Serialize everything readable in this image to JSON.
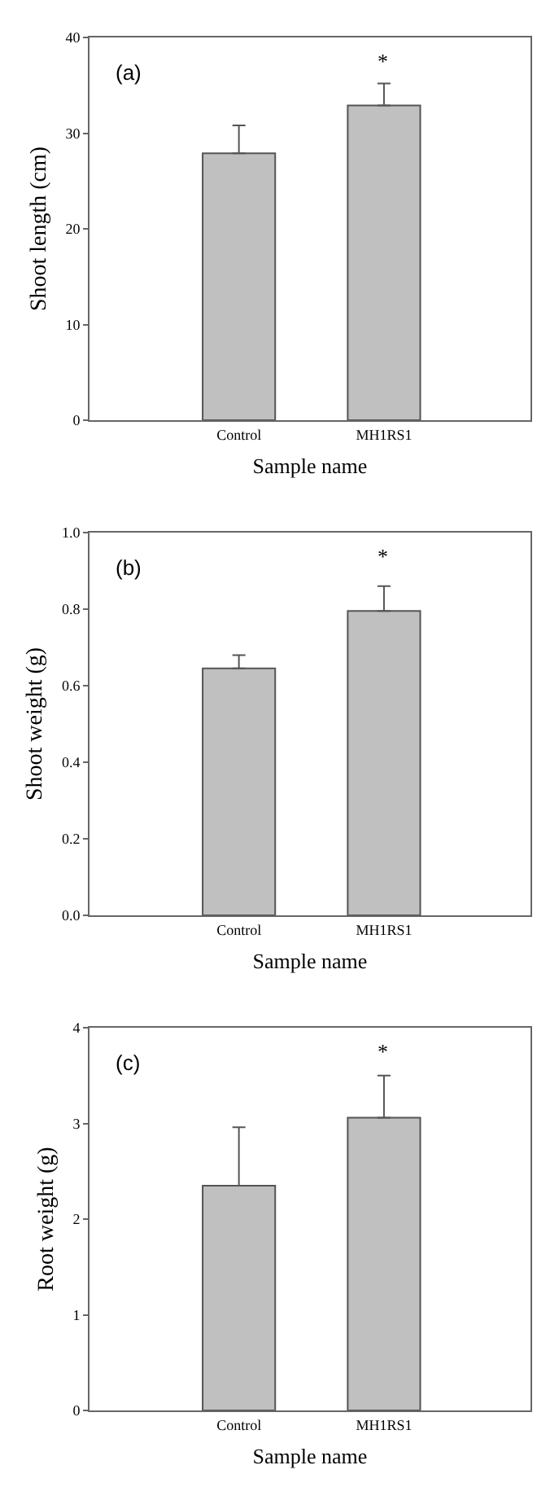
{
  "chart_data": [
    {
      "type": "bar",
      "categories": [
        "Control",
        "MH1RS1"
      ],
      "values": [
        27.9,
        32.9
      ],
      "errors": [
        [
          27.9,
          30.8
        ],
        [
          32.9,
          35.2
        ]
      ],
      "color": "#c0c0c0",
      "xlabel": "Sample name",
      "ylabel": "Shoot length (cm)",
      "ylim": [
        0,
        40
      ],
      "yticks": [
        0,
        10,
        20,
        30,
        40
      ],
      "annotations": [
        "(a)",
        "*"
      ]
    },
    {
      "type": "bar",
      "categories": [
        "Control",
        "MH1RS1"
      ],
      "values": [
        0.645,
        0.795
      ],
      "errors": [
        [
          0.645,
          0.68
        ],
        [
          0.795,
          0.86
        ]
      ],
      "color": "#c0c0c0",
      "xlabel": "Sample name",
      "ylabel": "Shoot weight (g)",
      "ylim": [
        0,
        1.0
      ],
      "yticks": [
        {
          "value": 0,
          "label": "0.0"
        },
        0.2,
        0.4,
        0.6,
        0.8,
        {
          "value": 1,
          "label": "1.0"
        }
      ],
      "annotations": [
        "(b)",
        "*"
      ]
    },
    {
      "type": "bar",
      "categories": [
        "Control",
        "MH1RS1"
      ],
      "values": [
        2.35,
        3.06
      ],
      "errors": [
        [
          2.35,
          2.96
        ],
        [
          3.06,
          3.5
        ]
      ],
      "color": "#c0c0c0",
      "xlabel": "Sample name",
      "ylabel": "Root weight (g)",
      "ylim": [
        0,
        4
      ],
      "yticks": [
        0,
        1,
        2,
        3,
        4
      ],
      "annotations": [
        "(c)",
        "*"
      ]
    }
  ]
}
